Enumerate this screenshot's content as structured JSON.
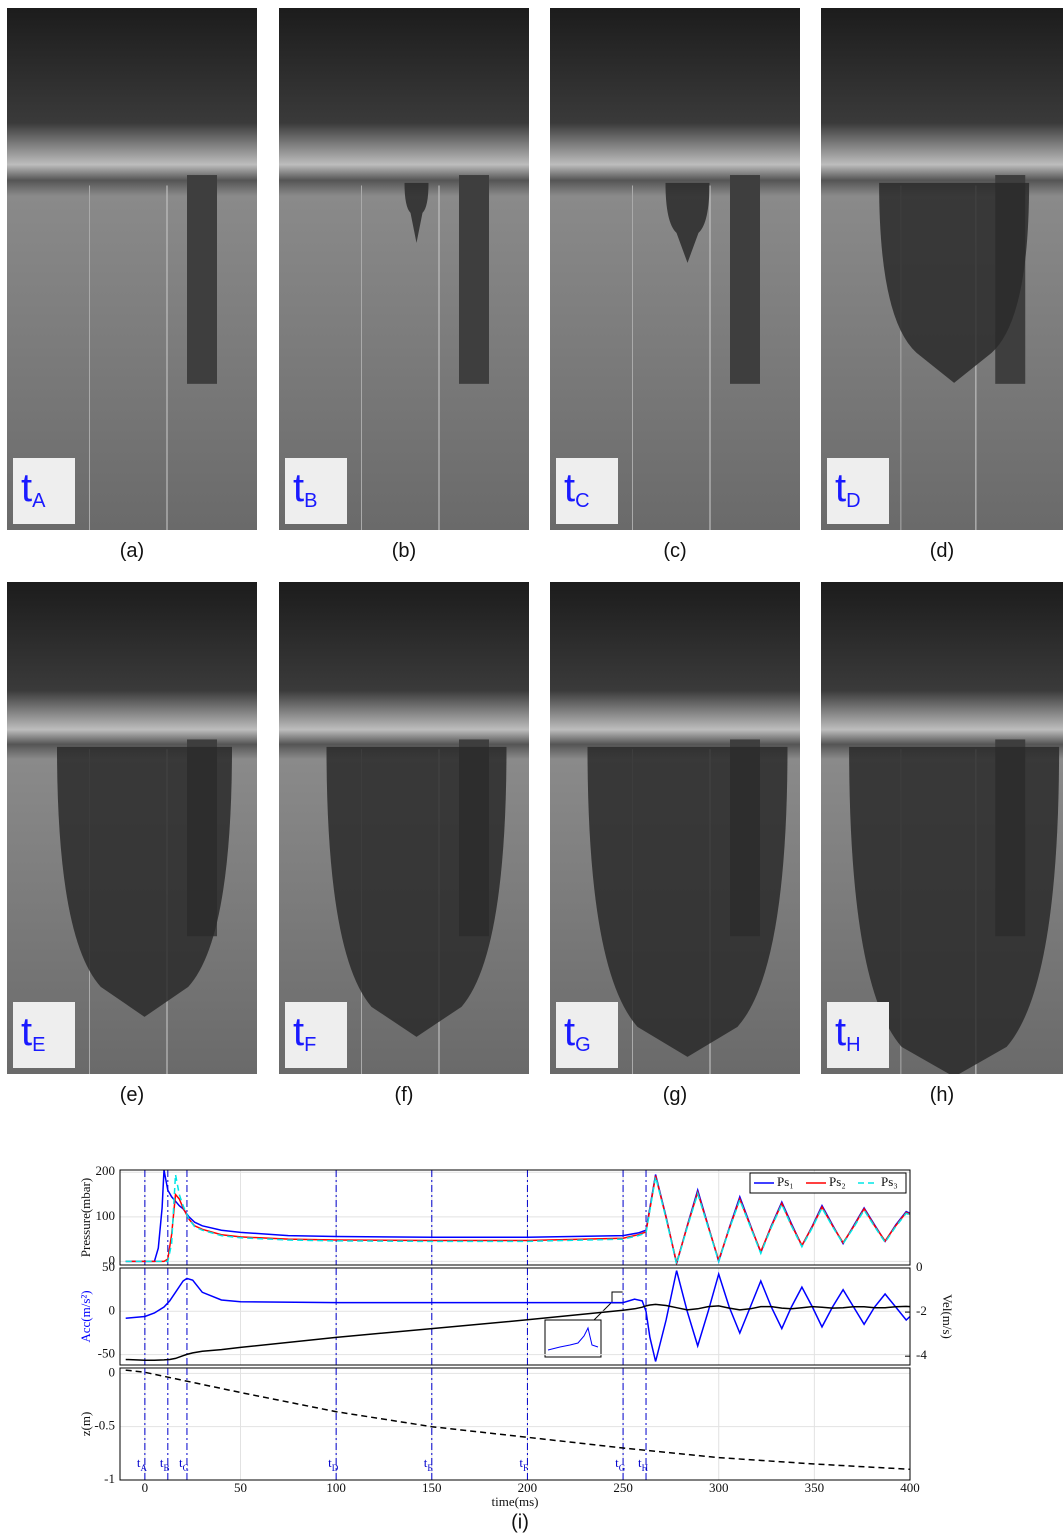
{
  "photos": {
    "label_prefix": "t",
    "panels": [
      {
        "sub": "A",
        "caption": "(a)"
      },
      {
        "sub": "B",
        "caption": "(b)"
      },
      {
        "sub": "C",
        "caption": "(c)"
      },
      {
        "sub": "D",
        "caption": "(d)"
      },
      {
        "sub": "E",
        "caption": "(e)"
      },
      {
        "sub": "F",
        "caption": "(f)"
      },
      {
        "sub": "G",
        "caption": "(g)"
      },
      {
        "sub": "H",
        "caption": "(h)"
      }
    ]
  },
  "chart_caption": "(i)",
  "chart_data": [
    {
      "type": "line",
      "ylabel": "Pressure(mbar)",
      "ylim": [
        -8,
        205
      ],
      "yticks": [
        0,
        100,
        200
      ],
      "grid": true,
      "legend": "upper right",
      "x": [
        -10,
        0,
        5,
        7,
        9,
        10,
        12,
        14,
        16,
        18,
        20,
        23,
        26,
        30,
        40,
        50,
        75,
        100,
        150,
        200,
        250,
        258,
        262,
        267,
        272.5,
        278,
        283.5,
        289,
        294.5,
        300,
        305.5,
        311,
        316.5,
        322,
        327.5,
        333,
        338,
        343.5,
        349,
        354,
        359.5,
        365,
        370.5,
        376,
        381.5,
        387,
        392.5,
        398,
        400
      ],
      "series": [
        {
          "name": "Ps₁",
          "color": "#0000ff",
          "values": [
            0,
            0,
            0,
            30,
            120,
            205,
            160,
            145,
            135,
            125,
            118,
            100,
            88,
            80,
            70,
            65,
            58,
            56,
            54,
            54,
            58,
            64,
            70,
            195,
            100,
            -5,
            80,
            160,
            80,
            0,
            75,
            145,
            82,
            20,
            80,
            133,
            85,
            35,
            80,
            125,
            82,
            40,
            80,
            120,
            82,
            45,
            82,
            112,
            108
          ]
        },
        {
          "name": "Ps₂",
          "color": "#ff0000",
          "values": [
            0,
            0,
            0,
            0,
            0,
            0,
            5,
            60,
            150,
            140,
            120,
            95,
            80,
            72,
            60,
            55,
            50,
            48,
            47,
            47,
            52,
            60,
            66,
            192,
            98,
            -3,
            78,
            155,
            78,
            3,
            73,
            140,
            80,
            22,
            78,
            130,
            82,
            36,
            78,
            122,
            80,
            42,
            78,
            118,
            80,
            46,
            80,
            110,
            106
          ]
        },
        {
          "name": "Ps₃",
          "color": "#00e5e5",
          "linestyle": "dashed",
          "values": [
            0,
            0,
            0,
            0,
            0,
            0,
            0,
            40,
            195,
            150,
            125,
            95,
            78,
            70,
            58,
            53,
            48,
            46,
            45,
            45,
            50,
            58,
            64,
            190,
            96,
            -6,
            76,
            152,
            76,
            0,
            72,
            138,
            78,
            18,
            76,
            128,
            80,
            33,
            76,
            120,
            78,
            40,
            76,
            115,
            78,
            43,
            78,
            108,
            104
          ]
        }
      ]
    },
    {
      "type": "line",
      "ylabel": "Acc(m/s²)",
      "ylabel_color": "#0000ff",
      "y2label": "Vel(m/s)",
      "ylim": [
        -62,
        50
      ],
      "yticks": [
        -50,
        0,
        50
      ],
      "y2lim": [
        -4.4,
        0
      ],
      "y2ticks": [
        -4,
        -2,
        0
      ],
      "grid": true,
      "x": [
        -10,
        0,
        5,
        10,
        13,
        16,
        20,
        22,
        25,
        30,
        40,
        50,
        100,
        150,
        200,
        250,
        256,
        260,
        262,
        264,
        267,
        272.5,
        278,
        283.5,
        289,
        294.5,
        300,
        305.5,
        311,
        316.5,
        322,
        327.5,
        333,
        338,
        343.5,
        349,
        354,
        359.5,
        365,
        370.5,
        376,
        381.5,
        387,
        392.5,
        398,
        400
      ],
      "series": [
        {
          "color": "#0000ff",
          "values": [
            -8,
            -6,
            -2,
            5,
            12,
            22,
            35,
            38,
            36,
            22,
            13,
            11,
            10,
            10,
            10,
            10,
            14,
            12,
            0,
            -30,
            -58,
            -10,
            47,
            0,
            -40,
            0,
            43,
            5,
            -25,
            5,
            35,
            5,
            -20,
            5,
            28,
            5,
            -18,
            5,
            25,
            5,
            -15,
            5,
            20,
            5,
            -10,
            -6
          ]
        },
        {
          "color": "#000000",
          "axis": "y2",
          "values": [
            -4.15,
            -4.18,
            -4.18,
            -4.17,
            -4.15,
            -4.1,
            -3.98,
            -3.92,
            -3.85,
            -3.78,
            -3.7,
            -3.6,
            -3.15,
            -2.75,
            -2.35,
            -1.92,
            -1.85,
            -1.78,
            -1.72,
            -1.68,
            -1.65,
            -1.7,
            -1.8,
            -1.9,
            -1.85,
            -1.75,
            -1.72,
            -1.82,
            -1.9,
            -1.85,
            -1.75,
            -1.75,
            -1.82,
            -1.85,
            -1.8,
            -1.75,
            -1.78,
            -1.82,
            -1.8,
            -1.76,
            -1.76,
            -1.8,
            -1.8,
            -1.76,
            -1.74,
            -1.75
          ]
        }
      ]
    },
    {
      "type": "line",
      "ylabel": "z(m)",
      "xlabel": "time(ms)",
      "xlim": [
        -13,
        400
      ],
      "xticks": [
        0,
        50,
        100,
        150,
        200,
        250,
        300,
        350,
        400
      ],
      "ylim": [
        -1,
        0.05
      ],
      "yticks": [
        -1,
        -0.5,
        0
      ],
      "grid": true,
      "x": [
        -10,
        0,
        50,
        100,
        150,
        200,
        250,
        300,
        350,
        400
      ],
      "series": [
        {
          "color": "#000000",
          "linestyle": "dashed",
          "values": [
            0.03,
            0.01,
            -0.18,
            -0.36,
            -0.5,
            -0.6,
            -0.7,
            -0.79,
            -0.85,
            -0.9
          ]
        }
      ],
      "markers": {
        "color": "#0000cc",
        "prefix": "t",
        "items": [
          {
            "time": 0,
            "sub": "A"
          },
          {
            "time": 12,
            "sub": "B"
          },
          {
            "time": 22,
            "sub": "C"
          },
          {
            "time": 100,
            "sub": "D"
          },
          {
            "time": 150,
            "sub": "E"
          },
          {
            "time": 200,
            "sub": "F"
          },
          {
            "time": 250,
            "sub": "G"
          },
          {
            "time": 262,
            "sub": "H"
          }
        ]
      }
    }
  ]
}
